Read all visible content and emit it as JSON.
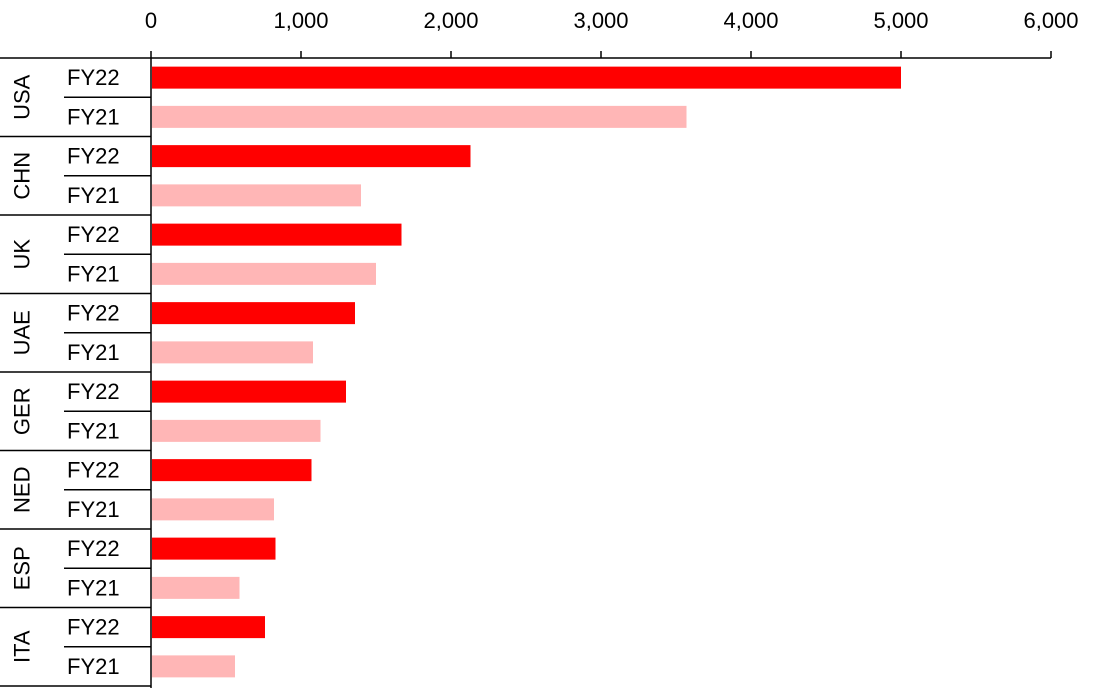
{
  "chart_data": {
    "type": "bar",
    "orientation": "horizontal",
    "title": "",
    "xlabel": "",
    "ylabel": "",
    "xlim": [
      0,
      6000
    ],
    "x_ticks": [
      0,
      1000,
      2000,
      3000,
      4000,
      5000,
      6000
    ],
    "x_tick_labels": [
      "0",
      "1,000",
      "2,000",
      "3,000",
      "4,000",
      "5,000",
      "6,000"
    ],
    "x_axis_position": "top",
    "grid": false,
    "legend": null,
    "series": [
      {
        "name": "FY22",
        "color": "#ff0000"
      },
      {
        "name": "FY21",
        "color": "#ffb6b6"
      }
    ],
    "groups": [
      {
        "name": "USA",
        "values": {
          "FY22": 5000,
          "FY21": 3570
        }
      },
      {
        "name": "CHN",
        "values": {
          "FY22": 2130,
          "FY21": 1400
        }
      },
      {
        "name": "UK",
        "values": {
          "FY22": 1670,
          "FY21": 1500
        }
      },
      {
        "name": "UAE",
        "values": {
          "FY22": 1360,
          "FY21": 1080
        }
      },
      {
        "name": "GER",
        "values": {
          "FY22": 1300,
          "FY21": 1130
        }
      },
      {
        "name": "NED",
        "values": {
          "FY22": 1070,
          "FY21": 820
        }
      },
      {
        "name": "ESP",
        "values": {
          "FY22": 830,
          "FY21": 590
        }
      },
      {
        "name": "ITA",
        "values": {
          "FY22": 760,
          "FY21": 560
        }
      }
    ]
  }
}
